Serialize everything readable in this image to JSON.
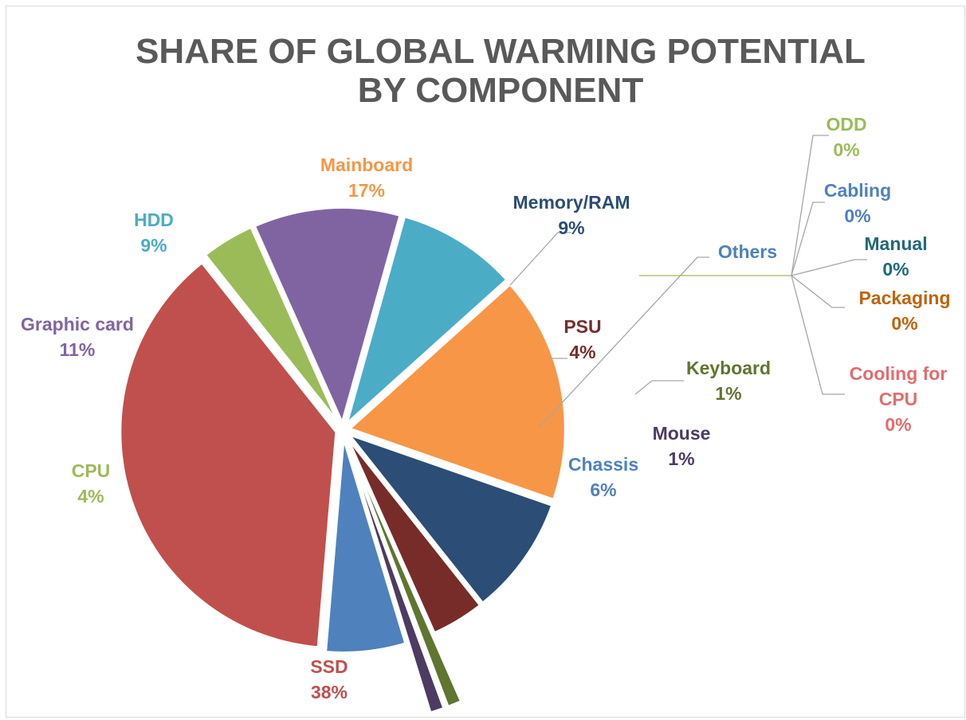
{
  "chart_data": {
    "type": "pie",
    "title": "SHARE OF GLOBAL WARMING POTENTIAL BY COMPONENT",
    "title_lines": [
      "SHARE OF GLOBAL WARMING POTENTIAL",
      "BY COMPONENT"
    ],
    "slices": [
      {
        "name": "Mainboard",
        "value": 17,
        "label": "17%",
        "color": "#F79646"
      },
      {
        "name": "Memory/RAM",
        "value": 9,
        "label": "9%",
        "color": "#2C4D75"
      },
      {
        "name": "PSU",
        "value": 4,
        "label": "4%",
        "color": "#772C2A"
      },
      {
        "name": "Keyboard",
        "value": 1,
        "label": "1%",
        "color": "#5F7530"
      },
      {
        "name": "Mouse",
        "value": 1,
        "label": "1%",
        "color": "#4D3B62"
      },
      {
        "name": "Chassis",
        "value": 6,
        "label": "6%",
        "color": "#4F81BD"
      },
      {
        "name": "SSD",
        "value": 38,
        "label": "38%",
        "color": "#C0504D"
      },
      {
        "name": "CPU",
        "value": 4,
        "label": "4%",
        "color": "#9BBB59"
      },
      {
        "name": "Graphic card",
        "value": 11,
        "label": "11%",
        "color": "#8064A2"
      },
      {
        "name": "HDD",
        "value": 9,
        "label": "9%",
        "color": "#4BACC6"
      }
    ],
    "others": {
      "name": "Others",
      "color": "#4F81BD",
      "items": [
        {
          "name": "ODD",
          "value": 0,
          "label": "0%",
          "color": "#9BBB59"
        },
        {
          "name": "Cabling",
          "value": 0,
          "label": "0%",
          "color": "#4F81BD"
        },
        {
          "name": "Manual",
          "value": 0,
          "label": "0%",
          "color": "#1F6A78"
        },
        {
          "name": "Packaging",
          "value": 0,
          "label": "0%",
          "color": "#C0630A"
        },
        {
          "name": "Cooling for CPU",
          "value": 0,
          "label": "0%",
          "color": "#E46C6C"
        }
      ]
    }
  }
}
